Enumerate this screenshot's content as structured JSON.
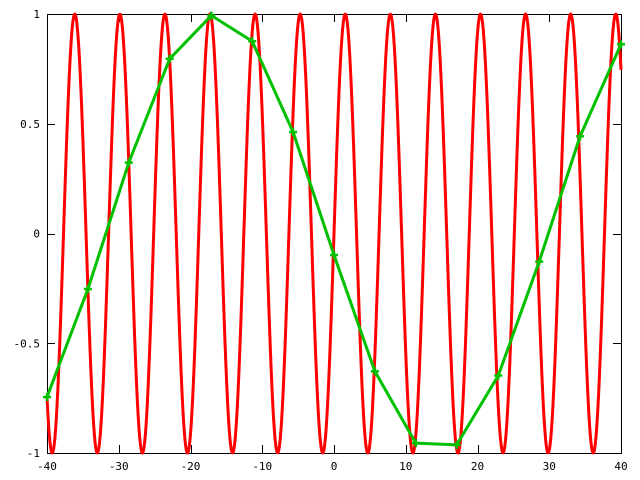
{
  "chart_data": {
    "type": "line",
    "xlim": [
      -40,
      40
    ],
    "ylim": [
      -1,
      1
    ],
    "x_ticks": [
      -40,
      -30,
      -20,
      -10,
      0,
      10,
      20,
      30,
      40
    ],
    "y_ticks": [
      -1,
      -0.5,
      0,
      0.5,
      1
    ],
    "x_tick_labels": [
      "-40",
      "-30",
      "-20",
      "-10",
      "0",
      "10",
      "20",
      "30",
      "40"
    ],
    "y_tick_labels": [
      "-1",
      "-0.5",
      "0",
      "0.5",
      "1"
    ],
    "grid": false,
    "legend": "none",
    "series": [
      {
        "function": "sin(x)",
        "color": "#ff0000",
        "style": "line",
        "samples": 800
      },
      {
        "color": "#00c000",
        "style": "linespoints",
        "marker": "plus",
        "points": [
          {
            "x": -40.0,
            "y": -0.745
          },
          {
            "x": -34.3,
            "y": -0.253
          },
          {
            "x": -28.6,
            "y": 0.323
          },
          {
            "x": -22.9,
            "y": 0.796
          },
          {
            "x": -17.1,
            "y": 0.993
          },
          {
            "x": -11.4,
            "y": 0.876
          },
          {
            "x": -5.7,
            "y": 0.462
          },
          {
            "x": 0.0,
            "y": -0.098
          },
          {
            "x": 5.7,
            "y": -0.628
          },
          {
            "x": 11.4,
            "y": -0.955
          },
          {
            "x": 17.1,
            "y": -0.963
          },
          {
            "x": 22.9,
            "y": -0.647
          },
          {
            "x": 28.6,
            "y": -0.128
          },
          {
            "x": 34.3,
            "y": 0.443
          },
          {
            "x": 40.0,
            "y": 0.862
          }
        ]
      }
    ]
  }
}
